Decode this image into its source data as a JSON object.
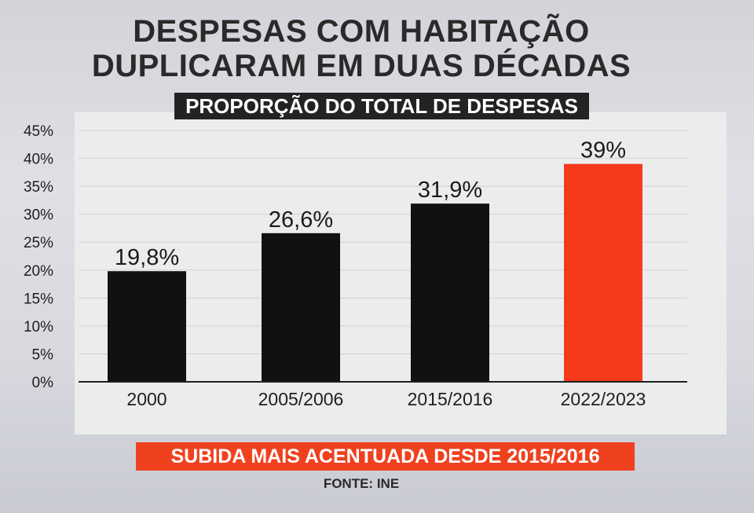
{
  "title_line1": "DESPESAS COM HABITAÇÃO",
  "title_line2": "DUPLICARAM EM DUAS DÉCADAS",
  "subtitle": "PROPORÇÃO DO TOTAL DE DESPESAS",
  "footer_banner": "SUBIDA MAIS ACENTUADA DESDE 2015/2016",
  "source": "FONTE: INE",
  "colors": {
    "bar": "#111111",
    "highlight": "#f5391b",
    "banner": "#f0411f"
  },
  "chart_data": {
    "type": "bar",
    "categories": [
      "2000",
      "2005/2006",
      "2015/2016",
      "2022/2023"
    ],
    "values": [
      19.8,
      26.6,
      31.9,
      39
    ],
    "value_labels": [
      "19,8%",
      "26,6%",
      "31,9%",
      "39%"
    ],
    "highlight_index": 3,
    "ylim": [
      0,
      45
    ],
    "yticks": [
      "0%",
      "5%",
      "10%",
      "15%",
      "20%",
      "25%",
      "30%",
      "35%",
      "40%",
      "45%"
    ],
    "grid": true
  }
}
